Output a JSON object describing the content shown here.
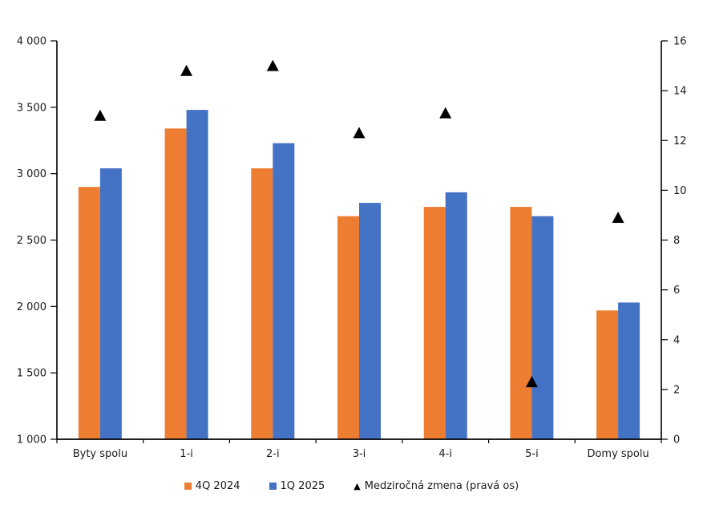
{
  "background": "#ffffff",
  "chart_data": {
    "type": "bar",
    "subtype": "combo-bar-scatter",
    "title": "",
    "categories": [
      "Byty spolu",
      "1-i",
      "2-i",
      "3-i",
      "4-i",
      "5-i",
      "Domy spolu"
    ],
    "series": [
      {
        "name": "4Q 2024",
        "type": "bar",
        "axis": "left",
        "color": "#ED7D31",
        "values": [
          2900,
          3340,
          3040,
          2680,
          2750,
          2750,
          1970
        ]
      },
      {
        "name": "1Q 2025",
        "type": "bar",
        "axis": "left",
        "color": "#4472C4",
        "values": [
          3040,
          3480,
          3230,
          2780,
          2860,
          2680,
          2030
        ]
      },
      {
        "name": "Medziročná zmena (pravá os)",
        "type": "scatter",
        "marker": "triangle",
        "axis": "right",
        "color": "#000000",
        "values": [
          13.0,
          14.8,
          15.0,
          12.3,
          13.1,
          2.3,
          8.9
        ]
      }
    ],
    "left_axis": {
      "min": 1000,
      "max": 4000,
      "step": 500,
      "tick_labels": [
        "1 000",
        "1 500",
        "2 000",
        "2 500",
        "3 000",
        "3 500",
        "4 000"
      ]
    },
    "right_axis": {
      "min": 0,
      "max": 16,
      "step": 2,
      "tick_labels": [
        "0",
        "2",
        "4",
        "6",
        "8",
        "10",
        "12",
        "14",
        "16"
      ]
    },
    "grid": false,
    "legend_position": "bottom",
    "axis_color": "#000000",
    "text_color": "#1a1a1a"
  }
}
